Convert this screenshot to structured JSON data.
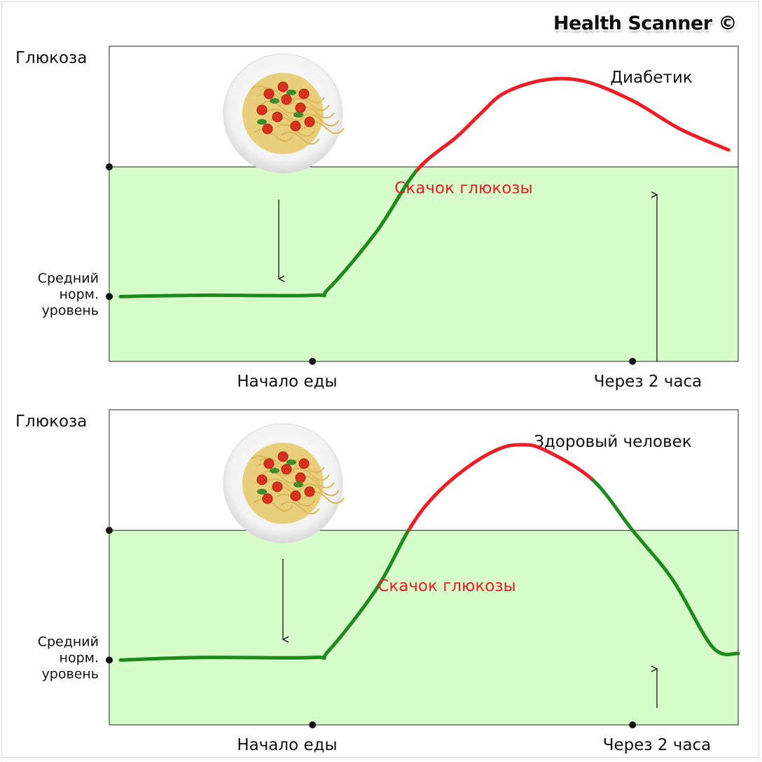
{
  "brand": "Health Scanner ©",
  "colors": {
    "normal_zone": "#d6fdca",
    "rise_line": "#ee1d26",
    "normal_line": "#1e8a1e",
    "rise_label": "#ee1d26"
  },
  "chart_data": [
    {
      "type": "line",
      "title": "Диабетик",
      "ylabel": "Глюкоза",
      "y_marker_label": "Средний норм. уровень",
      "x_tick_labels": [
        "Начало еды",
        "Через 2 часа"
      ],
      "annotation": "Скачок глюкозы",
      "normal_band": [
        0,
        1
      ],
      "ylim": [
        -0.5,
        1.93
      ],
      "x_range": [
        -1.27,
        2.66
      ],
      "series": [
        {
          "x": [
            -1.2,
            -0.7,
            0,
            0.1,
            0.4,
            0.65,
            0.9,
            1.05,
            1.2,
            1.45,
            1.7,
            2.0,
            2.3,
            2.6
          ],
          "y": [
            0,
            0.01,
            0.01,
            0.06,
            0.5,
            0.97,
            1.23,
            1.41,
            1.57,
            1.67,
            1.66,
            1.51,
            1.29,
            1.13
          ]
        }
      ],
      "normal_until_x": 0.65
    },
    {
      "type": "line",
      "title": "Здоровый человек",
      "ylabel": "Глюкоза",
      "y_marker_label": "Средний норм. уровень",
      "x_tick_labels": [
        "Начало еды",
        "Через 2 часа"
      ],
      "annotation": "Скачок глюкозы",
      "normal_band": [
        0,
        1
      ],
      "ylim": [
        -0.5,
        1.93
      ],
      "x_range": [
        -1.27,
        2.66
      ],
      "series": [
        {
          "x": [
            -1.2,
            -0.7,
            0,
            0.1,
            0.4,
            0.6,
            0.75,
            0.95,
            1.15,
            1.3,
            1.45,
            1.75,
            2.0,
            2.25,
            2.5,
            2.66
          ],
          "y": [
            0,
            0.02,
            0.02,
            0.07,
            0.55,
            1.0,
            1.25,
            1.47,
            1.62,
            1.66,
            1.62,
            1.39,
            1.0,
            0.62,
            0.1,
            0.05
          ]
        }
      ],
      "normal_until_x": 0.6,
      "normal_from_x": 1.75
    }
  ]
}
